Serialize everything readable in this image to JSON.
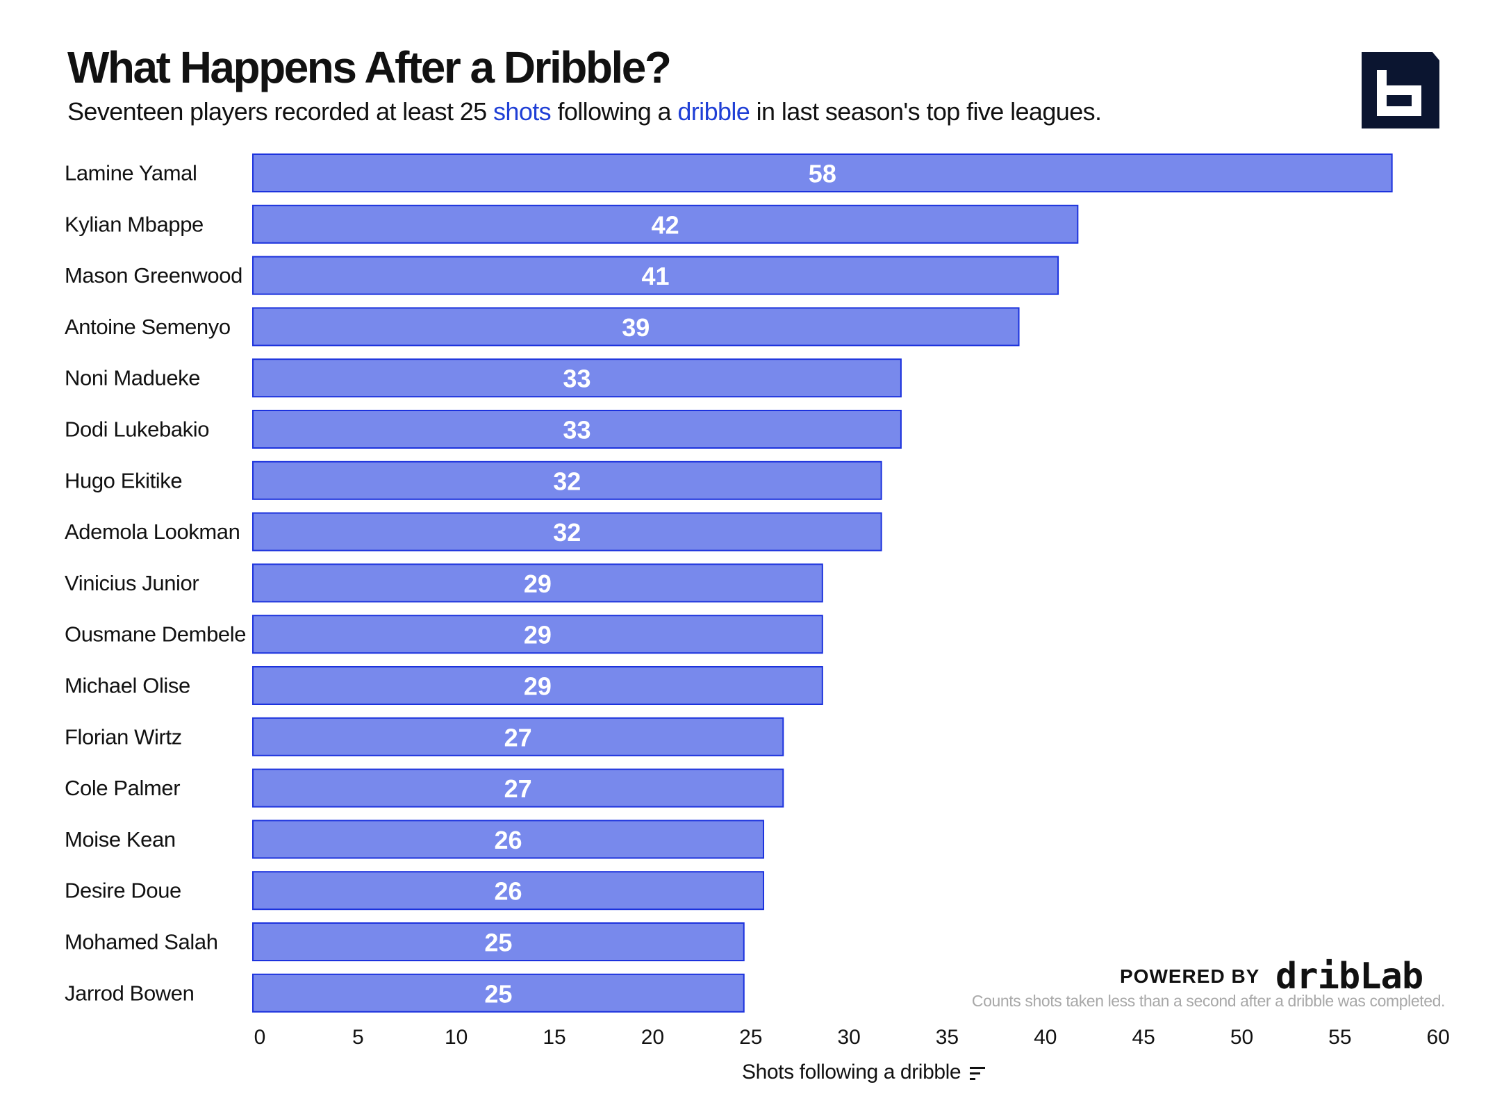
{
  "header": {
    "title": "What Happens After a Dribble?",
    "subtitle_parts": [
      "Seventeen players recorded at least 25 ",
      "shots",
      " following a ",
      "dribble",
      " in last season's top five leagues."
    ]
  },
  "logo": {
    "icon": "b-logo-icon"
  },
  "footer": {
    "powered_by": "POWERED BY",
    "brand": "dribLab",
    "footnote": "Counts shots taken less than a second after a dribble was completed."
  },
  "colors": {
    "bar_fill": "#7889ec",
    "bar_stroke": "#1c32dd",
    "highlight_text": "#1f3fd6",
    "logo": "#0b1530"
  },
  "chart_data": {
    "type": "bar",
    "orientation": "horizontal",
    "title": "What Happens After a Dribble?",
    "xlabel": "Shots following a dribble",
    "ylabel": "",
    "xlim": [
      0,
      60
    ],
    "xticks": [
      0,
      5,
      10,
      15,
      20,
      25,
      30,
      35,
      40,
      45,
      50,
      55,
      60
    ],
    "grid": false,
    "legend": "none",
    "categories": [
      "Lamine Yamal",
      "Kylian Mbappe",
      "Mason Greenwood",
      "Antoine Semenyo",
      "Noni Madueke",
      "Dodi Lukebakio",
      "Hugo Ekitike",
      "Ademola Lookman",
      "Vinicius Junior",
      "Ousmane Dembele",
      "Michael Olise",
      "Florian Wirtz",
      "Cole Palmer",
      "Moise Kean",
      "Desire Doue",
      "Mohamed Salah",
      "Jarrod Bowen"
    ],
    "values": [
      58,
      42,
      41,
      39,
      33,
      33,
      32,
      32,
      29,
      29,
      29,
      27,
      27,
      26,
      26,
      25,
      25
    ]
  }
}
